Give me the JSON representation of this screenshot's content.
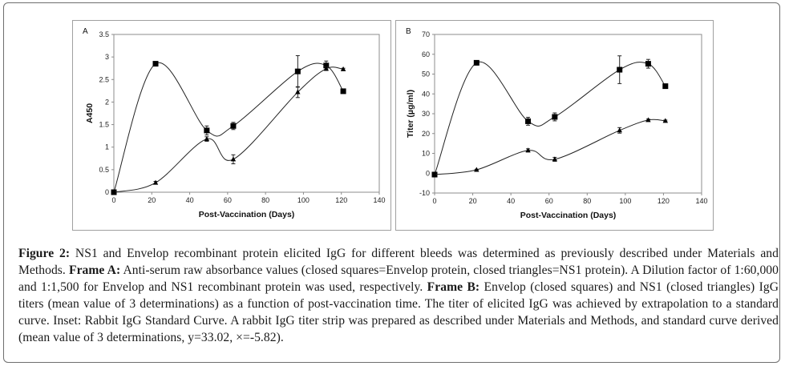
{
  "figure": {
    "caption": {
      "segments": [
        {
          "bold": true,
          "text": "Figure 2:"
        },
        {
          "bold": false,
          "text": " NS1 and Envelop recombinant protein elicited IgG for different bleeds was determined as previously described under Materials and Methods. "
        },
        {
          "bold": true,
          "text": "Frame A:"
        },
        {
          "bold": false,
          "text": " Anti-serum raw absorbance values (closed squares=Envelop protein, closed triangles=NS1 protein). A Dilution factor of 1:60,000 and 1:1,500 for Envelop and NS1 recombinant protein was used, respectively. "
        },
        {
          "bold": true,
          "text": "Frame B:"
        },
        {
          "bold": false,
          "text": " Envelop (closed squares) and NS1 (closed triangles) IgG titers (mean value of 3 determinations) as a function of post-vaccination time. The titer of elicited IgG was achieved by extrapolation to a standard curve. Inset: Rabbit IgG Standard Curve. A rabbit IgG titer strip was prepared as described under Materials and Methods, and standard curve derived (mean value of 3 determinations, y=33.02, ×=-5.82)."
        }
      ]
    }
  },
  "chart_data": [
    {
      "type": "line",
      "panel_label": "A",
      "title": "",
      "xlabel": "Post-Vaccination (Days)",
      "ylabel": "A450",
      "xlim": [
        0,
        140
      ],
      "ylim": [
        0,
        3.5
      ],
      "xticks": [
        0,
        20,
        40,
        60,
        80,
        100,
        120,
        140
      ],
      "yticks": [
        0,
        0.5,
        1,
        1.5,
        2,
        2.5,
        3,
        3.5
      ],
      "ytick_labels": [
        "0",
        "0.5",
        "1",
        "1.5",
        "2",
        "2.5",
        "3",
        "3.5"
      ],
      "grid": false,
      "legend": "none",
      "smooth": true,
      "x": [
        0,
        22,
        49,
        63,
        97,
        112,
        121
      ],
      "series": [
        {
          "name": "Envelop protein",
          "marker": "square",
          "values": [
            0,
            2.85,
            1.37,
            1.47,
            2.68,
            2.81,
            2.24
          ],
          "errors": [
            0,
            0.02,
            0.1,
            0.08,
            0.35,
            0.1,
            0.04
          ]
        },
        {
          "name": "NS1 protein",
          "marker": "triangle",
          "values": [
            0,
            0.21,
            1.18,
            0.73,
            2.22,
            2.74,
            2.73
          ],
          "errors": [
            0,
            0.03,
            0.05,
            0.1,
            0.12,
            0.04,
            0.02
          ]
        }
      ]
    },
    {
      "type": "line",
      "panel_label": "B",
      "title": "",
      "xlabel": "Post-Vaccination (Days)",
      "ylabel": "Titer (µg/ml)",
      "xlim": [
        0,
        140
      ],
      "ylim": [
        -10,
        70
      ],
      "xticks": [
        0,
        20,
        40,
        60,
        80,
        100,
        120,
        140
      ],
      "yticks": [
        -10,
        0,
        10,
        20,
        30,
        40,
        50,
        60,
        70
      ],
      "ytick_labels": [
        "-10",
        "0",
        "10",
        "20",
        "30",
        "40",
        "50",
        "60",
        "70"
      ],
      "grid": false,
      "legend": "none",
      "smooth": true,
      "x": [
        0,
        22,
        49,
        63,
        97,
        112,
        121
      ],
      "series": [
        {
          "name": "Envelop (closed squares)",
          "marker": "square",
          "values": [
            -0.7,
            55.7,
            26.2,
            28.4,
            52.2,
            55.2,
            43.9
          ],
          "errors": [
            0,
            0.5,
            2.0,
            2.0,
            7.0,
            2.2,
            0.5
          ]
        },
        {
          "name": "NS1 (closed triangles)",
          "marker": "triangle",
          "values": [
            -0.7,
            1.7,
            11.5,
            7.0,
            21.6,
            26.8,
            26.4
          ],
          "errors": [
            0,
            0.3,
            0.8,
            1.0,
            1.4,
            0.5,
            0.4
          ]
        }
      ]
    }
  ]
}
